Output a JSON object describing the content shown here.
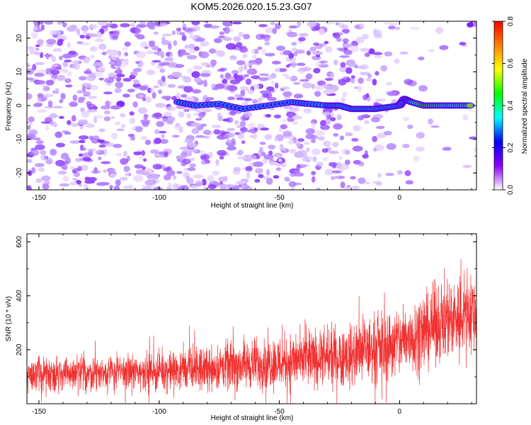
{
  "title": "KOM5.2026.020.15.23.G07",
  "chart_data": [
    {
      "type": "heatmap",
      "name": "spectrogram",
      "xlabel": "Height of straight line (km)",
      "ylabel": "Frequency (Hz)",
      "xlim": [
        -155,
        32
      ],
      "ylim": [
        -25,
        25
      ],
      "x_ticks": [
        -150,
        -100,
        -50,
        0
      ],
      "x_tick_labels": [
        "-150",
        "-100",
        "-50",
        "0"
      ],
      "y_ticks": [
        -20,
        -10,
        0,
        10,
        20
      ],
      "y_tick_labels": [
        "-20",
        "-10",
        "0",
        "10",
        "20"
      ],
      "colorbar": {
        "label": "Normalized spectral amplitude",
        "range": [
          0.0,
          0.8
        ],
        "ticks": [
          0.0,
          0.2,
          0.4,
          0.6,
          0.8
        ],
        "tick_labels": [
          "0.0",
          "0.2",
          "0.4",
          "0.6",
          "0.8"
        ],
        "colors": [
          "#ffffff",
          "#8a00ff",
          "#0000ff",
          "#00ffff",
          "#00ff00",
          "#ffff00",
          "#ff8000",
          "#ff0000"
        ]
      },
      "signal_trace": {
        "x": [
          -92,
          -85,
          -75,
          -65,
          -55,
          -45,
          -38,
          -30,
          -25,
          -20,
          -15,
          -10,
          -5,
          0,
          2,
          5,
          10,
          15,
          20,
          25,
          30
        ],
        "y": [
          1,
          0,
          0.5,
          -1,
          0,
          1,
          0.5,
          0,
          0,
          -1,
          -1,
          -1,
          -0.5,
          0,
          2,
          1,
          0,
          0,
          0,
          0,
          0
        ],
        "amplitude": [
          0.25,
          0.15,
          0.15,
          0.15,
          0.15,
          0.2,
          0.25,
          0.3,
          0.35,
          0.4,
          0.45,
          0.5,
          0.45,
          0.4,
          0.45,
          0.5,
          0.75,
          0.7,
          0.55,
          0.6,
          0.7
        ]
      },
      "background_noise_level": 0.08
    },
    {
      "type": "line",
      "name": "snr",
      "xlabel": "Height of straight line (km)",
      "ylabel": "SNR (10 * v/v)",
      "xlim": [
        -155,
        32
      ],
      "ylim": [
        0,
        630
      ],
      "x_ticks": [
        -150,
        -100,
        -50,
        0
      ],
      "x_tick_labels": [
        "-150",
        "-100",
        "-50",
        "0"
      ],
      "y_ticks": [
        200,
        400,
        600
      ],
      "y_tick_labels": [
        "200",
        "400",
        "600"
      ],
      "series": [
        {
          "name": "SNR",
          "color": "#f03232",
          "trend_x": [
            -155,
            -140,
            -120,
            -100,
            -80,
            -60,
            -40,
            -20,
            0,
            10,
            20,
            32
          ],
          "trend_y": [
            110,
            110,
            115,
            120,
            130,
            150,
            160,
            180,
            230,
            270,
            320,
            340
          ],
          "noise_amplitude_x": [
            -155,
            -100,
            -60,
            -20,
            0,
            32
          ],
          "noise_amplitude_y": [
            95,
            100,
            140,
            170,
            200,
            230
          ],
          "sample_count": 2600
        }
      ]
    }
  ]
}
